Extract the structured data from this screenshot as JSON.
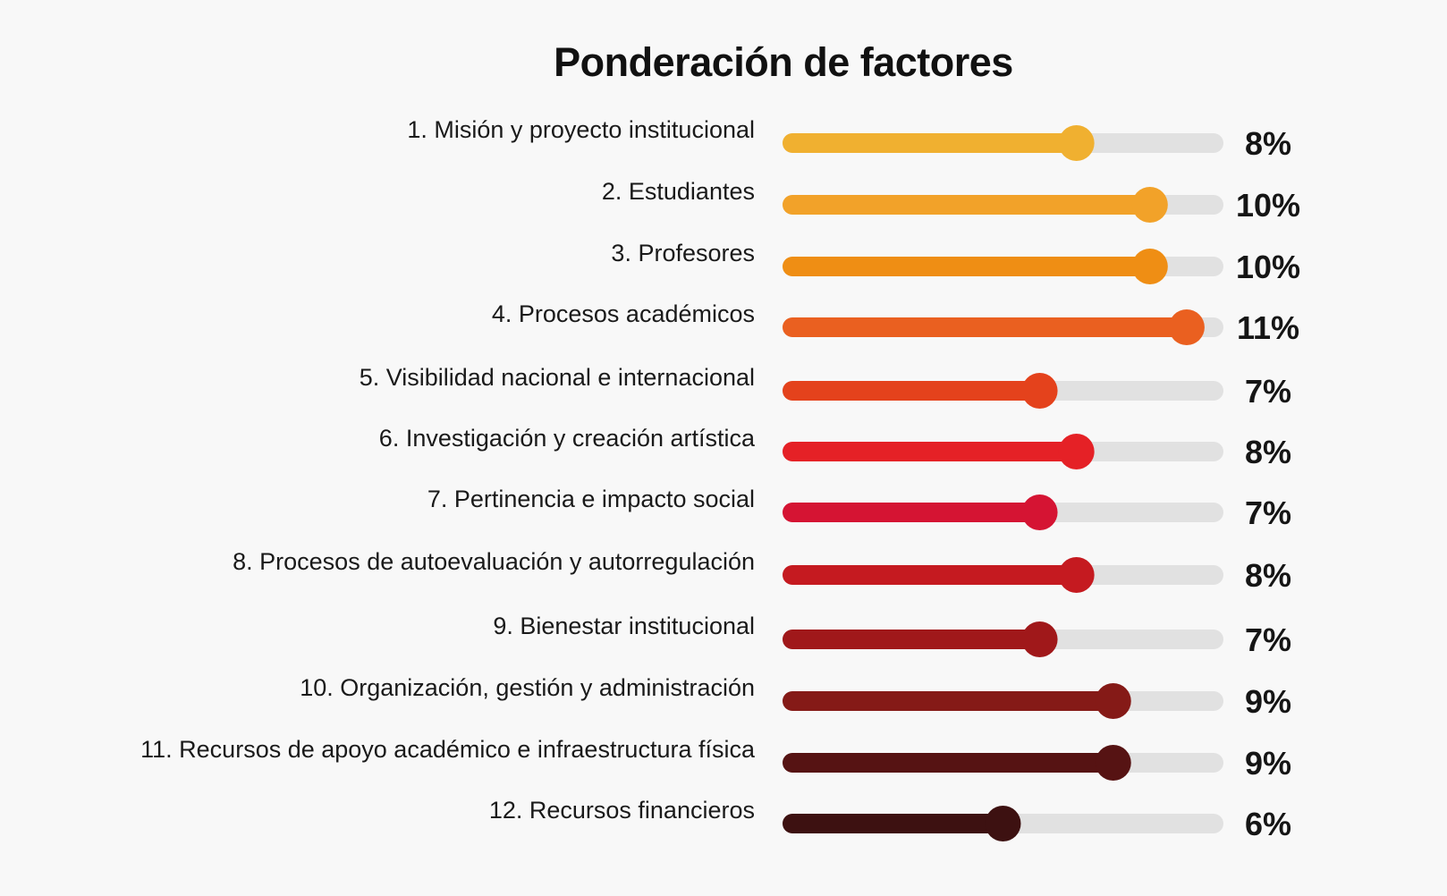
{
  "chart_data": {
    "type": "bar",
    "title": "Ponderación de factores",
    "xlim": [
      0,
      12
    ],
    "categories": [
      "1. Misión y proyecto institucional",
      "2. Estudiantes",
      "3. Profesores",
      "4. Procesos académicos",
      "5. Visibilidad nacional e internacional",
      "6. Investigación y creación artística",
      "7. Pertinencia e impacto social",
      "8. Procesos de autoevaluación y autorregulación",
      "9. Bienestar institucional",
      "10. Organización, gestión y administración",
      "11. Recursos de apoyo académico e infraestructura física",
      "12. Recursos financieros"
    ],
    "values": [
      8,
      10,
      10,
      11,
      7,
      8,
      7,
      8,
      7,
      9,
      9,
      6
    ],
    "value_labels": [
      "8%",
      "10%",
      "10%",
      "11%",
      "7%",
      "8%",
      "7%",
      "8%",
      "7%",
      "9%",
      "9%",
      "6%"
    ],
    "colors": [
      "#f0b030",
      "#f2a229",
      "#ef8e14",
      "#ea6020",
      "#e4421c",
      "#e52126",
      "#d51433",
      "#c51a20",
      "#a0181a",
      "#851a17",
      "#561313",
      "#3d1111"
    ],
    "track_color": "#e1e1e1"
  }
}
